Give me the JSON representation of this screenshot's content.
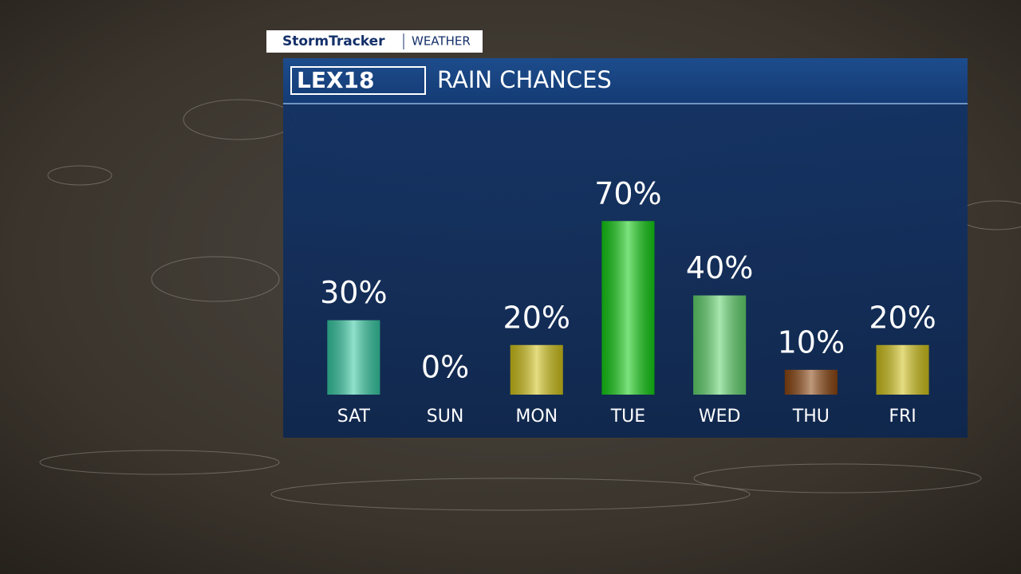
{
  "branding": {
    "show": "StormTracker",
    "section": "WEATHER",
    "logo": "LEX18"
  },
  "chart_data": {
    "type": "bar",
    "title": "RAIN CHANCES",
    "categories": [
      "SAT",
      "SUN",
      "MON",
      "TUE",
      "WED",
      "THU",
      "FRI"
    ],
    "values": [
      30,
      0,
      20,
      70,
      40,
      10,
      20
    ],
    "value_labels": [
      "30%",
      "0%",
      "20%",
      "70%",
      "40%",
      "10%",
      "20%"
    ],
    "colors": [
      "#36c9a2",
      "#36c9a2",
      "#cfc11a",
      "#14cc14",
      "#62d46e",
      "#8a4510",
      "#cfc11a"
    ]
  }
}
